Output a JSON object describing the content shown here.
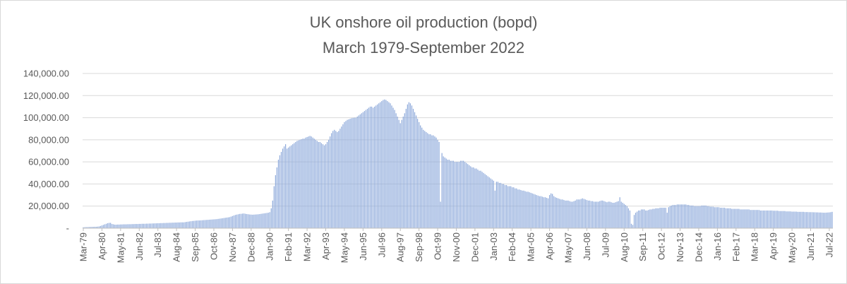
{
  "chart_data": {
    "type": "bar",
    "title": "UK onshore oil production (bopd)",
    "subtitle": "March 1979-September 2022",
    "xlabel": "",
    "ylabel": "",
    "ylim": [
      0,
      140000
    ],
    "yticks": [
      {
        "value": 0,
        "label": "-"
      },
      {
        "value": 20000,
        "label": "20,000.00"
      },
      {
        "value": 40000,
        "label": "40,000.00"
      },
      {
        "value": 60000,
        "label": "60,000.00"
      },
      {
        "value": 80000,
        "label": "80,000.00"
      },
      {
        "value": 100000,
        "label": "100,000.00"
      },
      {
        "value": 120000,
        "label": "120,000.00"
      },
      {
        "value": 140000,
        "label": "140,000.00"
      }
    ],
    "grid": true,
    "legend": "none",
    "bar_color": "#8eaadb",
    "series_start": "1979-03",
    "series_end": "2022-09",
    "xtick_labels": [
      "Mar-79",
      "Apr-80",
      "May-81",
      "Jun-82",
      "Jul-83",
      "Aug-84",
      "Sep-85",
      "Oct-86",
      "Nov-87",
      "Dec-88",
      "Jan-90",
      "Feb-91",
      "Mar-92",
      "Apr-93",
      "May-94",
      "Jun-95",
      "Jul-96",
      "Aug-97",
      "Sep-98",
      "Oct-99",
      "Nov-00",
      "Dec-01",
      "Jan-03",
      "Feb-04",
      "Mar-05",
      "Apr-06",
      "May-07",
      "Jun-08",
      "Jul-09",
      "Aug-10",
      "Sep-11",
      "Oct-12",
      "Nov-13",
      "Dec-14",
      "Jan-16",
      "Feb-17",
      "Mar-18",
      "Apr-19",
      "May-20",
      "Jun-21",
      "Jul-22"
    ],
    "values_by_year": [
      {
        "year": 1979,
        "values": [
          800,
          900,
          1000,
          1000,
          1100,
          1100,
          1200,
          1200,
          1300,
          1300
        ]
      },
      {
        "year": 1980,
        "values": [
          1400,
          1600,
          2000,
          2500,
          3000,
          3500,
          4000,
          4500,
          4800,
          4800,
          3800,
          3500
        ]
      },
      {
        "year": 1981,
        "values": [
          3200,
          3200,
          3300,
          3300,
          3400,
          3400,
          3500,
          3500,
          3500,
          3600,
          3600,
          3600
        ]
      },
      {
        "year": 1982,
        "values": [
          3700,
          3700,
          3800,
          3800,
          3800,
          3900,
          3900,
          4000,
          4000,
          4000,
          4100,
          4100
        ]
      },
      {
        "year": 1983,
        "values": [
          4200,
          4200,
          4300,
          4300,
          4400,
          4400,
          4500,
          4500,
          4600,
          4600,
          4700,
          4700
        ]
      },
      {
        "year": 1984,
        "values": [
          4800,
          4800,
          4900,
          4900,
          5000,
          5000,
          5100,
          5100,
          5200,
          5200,
          5300,
          5300
        ]
      },
      {
        "year": 1985,
        "values": [
          5300,
          5500,
          5700,
          5900,
          6100,
          6300,
          6500,
          6600,
          6800,
          6900,
          7000,
          7000
        ]
      },
      {
        "year": 1986,
        "values": [
          7100,
          7200,
          7300,
          7400,
          7500,
          7600,
          7700,
          7800,
          7900,
          8000,
          8100,
          8200
        ]
      },
      {
        "year": 1987,
        "values": [
          8400,
          8600,
          8800,
          9000,
          9200,
          9400,
          9600,
          9800,
          10000,
          10500,
          11000,
          11500
        ]
      },
      {
        "year": 1988,
        "values": [
          12000,
          12300,
          12600,
          12900,
          13000,
          13200,
          13300,
          13000,
          12800,
          12600,
          12400,
          12300
        ]
      },
      {
        "year": 1989,
        "values": [
          12200,
          12300,
          12400,
          12500,
          12600,
          12800,
          13000,
          13200,
          13400,
          13600,
          13800,
          14000
        ]
      },
      {
        "year": 1990,
        "values": [
          14500,
          18000,
          25000,
          38000,
          48000,
          55000,
          62000,
          66000,
          69000,
          72000,
          74000,
          76000
        ]
      },
      {
        "year": 1991,
        "values": [
          72000,
          73000,
          74000,
          75000,
          76000,
          77000,
          78000,
          79000,
          79500,
          80000,
          80500,
          81000
        ]
      },
      {
        "year": 1992,
        "values": [
          81000,
          82000,
          82500,
          83000,
          83500,
          83000,
          82000,
          81000,
          80000,
          79000,
          78000,
          78000
        ]
      },
      {
        "year": 1993,
        "values": [
          77000,
          76000,
          75000,
          76000,
          78000,
          80000,
          83000,
          86000,
          88000,
          89000,
          88000,
          87000
        ]
      },
      {
        "year": 1994,
        "values": [
          88000,
          90000,
          92000,
          94000,
          96000,
          97000,
          98000,
          98500,
          99000,
          99500,
          99800,
          100000
        ]
      },
      {
        "year": 1995,
        "values": [
          100000,
          101000,
          102000,
          103000,
          104000,
          105000,
          106000,
          107000,
          108000,
          109000,
          110000,
          110000
        ]
      },
      {
        "year": 1996,
        "values": [
          109000,
          110000,
          111000,
          112000,
          113000,
          114000,
          115000,
          116000,
          116500,
          116000,
          115000,
          114000
        ]
      },
      {
        "year": 1997,
        "values": [
          113000,
          111000,
          109000,
          107000,
          104000,
          101000,
          98000,
          95000,
          98000,
          101000,
          104000,
          108000
        ]
      },
      {
        "year": 1998,
        "values": [
          112000,
          114000,
          113000,
          111000,
          108000,
          105000,
          102000,
          99000,
          96000,
          93000,
          91000,
          89000
        ]
      },
      {
        "year": 1999,
        "values": [
          88000,
          87000,
          86000,
          85000,
          85000,
          84000,
          84000,
          83000,
          82000,
          80000,
          78000,
          24000
        ]
      },
      {
        "year": 2000,
        "values": [
          68000,
          65000,
          64000,
          63000,
          62000,
          62000,
          61000,
          61000,
          61000,
          60000,
          60000,
          60000
        ]
      },
      {
        "year": 2001,
        "values": [
          60000,
          61000,
          61000,
          61000,
          60000,
          59000,
          58000,
          57000,
          56000,
          55000,
          55000,
          54000
        ]
      },
      {
        "year": 2002,
        "values": [
          54000,
          53000,
          52000,
          52000,
          51000,
          50000,
          49000,
          48000,
          47000,
          46000,
          45000,
          44000
        ]
      },
      {
        "year": 2003,
        "values": [
          43000,
          34000,
          42000,
          42000,
          41000,
          41000,
          40000,
          40000,
          39000,
          39000,
          38000,
          38000
        ]
      },
      {
        "year": 2004,
        "values": [
          38000,
          37000,
          37000,
          36000,
          36000,
          35000,
          35000,
          34500,
          34000,
          34000,
          33500,
          33000
        ]
      },
      {
        "year": 2005,
        "values": [
          33000,
          32500,
          32000,
          31500,
          31000,
          30500,
          30000,
          29500,
          29000,
          29000,
          28500,
          28000
        ]
      },
      {
        "year": 2006,
        "values": [
          28000,
          27500,
          27000,
          30000,
          31500,
          31000,
          29000,
          28000,
          27500,
          27000,
          26500,
          26000
        ]
      },
      {
        "year": 2007,
        "values": [
          26000,
          25500,
          25000,
          25000,
          25000,
          24500,
          24000,
          24000,
          24500,
          25000,
          26000,
          26000
        ]
      },
      {
        "year": 2008,
        "values": [
          26000,
          26500,
          27000,
          26500,
          26000,
          25500,
          25000,
          25000,
          24500,
          24500,
          24000,
          24000
        ]
      },
      {
        "year": 2009,
        "values": [
          24000,
          24000,
          24500,
          25000,
          25000,
          24500,
          24000,
          23500,
          24000,
          24000,
          23500,
          23000
        ]
      },
      {
        "year": 2010,
        "values": [
          23000,
          23500,
          24000,
          24500,
          28000,
          24000,
          23000,
          22000,
          21000,
          20000,
          18000,
          16000
        ]
      },
      {
        "year": 2011,
        "values": [
          4000,
          3000,
          12000,
          14000,
          15000,
          16000,
          16000,
          17000,
          17000,
          17000,
          16000,
          16000
        ]
      },
      {
        "year": 2012,
        "values": [
          16500,
          17000,
          17000,
          17500,
          17500,
          18000,
          18000,
          18000,
          18500,
          18500,
          18500,
          18500
        ]
      },
      {
        "year": 2013,
        "values": [
          18500,
          14000,
          19000,
          20000,
          20500,
          21000,
          21000,
          21000,
          21500,
          21500,
          21500,
          21500
        ]
      },
      {
        "year": 2014,
        "values": [
          21500,
          21500,
          21500,
          21000,
          21000,
          20500,
          20500,
          20500,
          20000,
          20000,
          20000,
          20000
        ]
      },
      {
        "year": 2015,
        "values": [
          20000,
          20500,
          20500,
          20500,
          20500,
          20000,
          20000,
          19500,
          19500,
          19500,
          19000,
          19000
        ]
      },
      {
        "year": 2016,
        "values": [
          19000,
          19000,
          18500,
          18500,
          18500,
          18500,
          18000,
          18000,
          18000,
          18000,
          17500,
          17500
        ]
      },
      {
        "year": 2017,
        "values": [
          17500,
          17500,
          17500,
          17500,
          17000,
          17000,
          17000,
          17000,
          17000,
          17000,
          17000,
          16500
        ]
      },
      {
        "year": 2018,
        "values": [
          16500,
          16500,
          16500,
          16500,
          16500,
          16500,
          16000,
          16000,
          16000,
          16000,
          16000,
          16000
        ]
      },
      {
        "year": 2019,
        "values": [
          16000,
          16000,
          16000,
          15800,
          15800,
          15800,
          15800,
          15500,
          15500,
          15500,
          15500,
          15500
        ]
      },
      {
        "year": 2020,
        "values": [
          15200,
          15200,
          15200,
          15200,
          15000,
          15000,
          15000,
          15000,
          14800,
          14800,
          14800,
          14800
        ]
      },
      {
        "year": 2021,
        "values": [
          14800,
          14600,
          14600,
          14600,
          14500,
          14500,
          14500,
          14400,
          14400,
          14300,
          14300,
          14200
        ]
      },
      {
        "year": 2022,
        "values": [
          14200,
          14100,
          14000,
          14000,
          14100,
          14200,
          14300,
          14500,
          14800
        ]
      }
    ]
  }
}
